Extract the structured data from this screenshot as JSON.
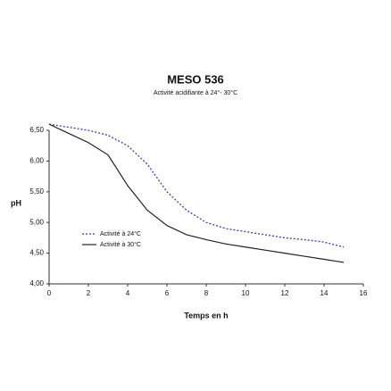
{
  "chart_data": {
    "type": "line",
    "title": "MESO 536",
    "subtitle": "Activité acidifiante à 24°- 30°C",
    "x_label": "Temps en h",
    "y_label": "pH",
    "x": [
      0,
      1,
      2,
      3,
      4,
      5,
      6,
      7,
      8,
      9,
      10,
      11,
      12,
      13,
      14,
      15
    ],
    "series": [
      {
        "name": "Activité à 24°C",
        "color": "#3b3fa8",
        "dash": true,
        "values": [
          6.6,
          6.55,
          6.5,
          6.42,
          6.25,
          5.95,
          5.5,
          5.2,
          5.0,
          4.9,
          4.85,
          4.8,
          4.75,
          4.72,
          4.68,
          4.6
        ]
      },
      {
        "name": "Activité à 30°C",
        "color": "#222222",
        "dash": false,
        "values": [
          6.6,
          6.45,
          6.3,
          6.1,
          5.6,
          5.2,
          4.95,
          4.8,
          4.72,
          4.65,
          4.6,
          4.55,
          4.5,
          4.45,
          4.4,
          4.35
        ]
      }
    ],
    "xlim": [
      0,
      16
    ],
    "xticks": [
      0,
      2,
      4,
      6,
      8,
      10,
      12,
      14,
      16
    ],
    "ylim": [
      4,
      6.5
    ],
    "yticks": [
      {
        "value": 4,
        "label": "4,00"
      },
      {
        "value": 4.5,
        "label": "4,50"
      },
      {
        "value": 5,
        "label": "5,00"
      },
      {
        "value": 5.5,
        "label": "5,50"
      },
      {
        "value": 6,
        "label": "6,00"
      },
      {
        "value": 6.5,
        "label": "6,50"
      }
    ],
    "grid": false,
    "legend": "center left"
  }
}
